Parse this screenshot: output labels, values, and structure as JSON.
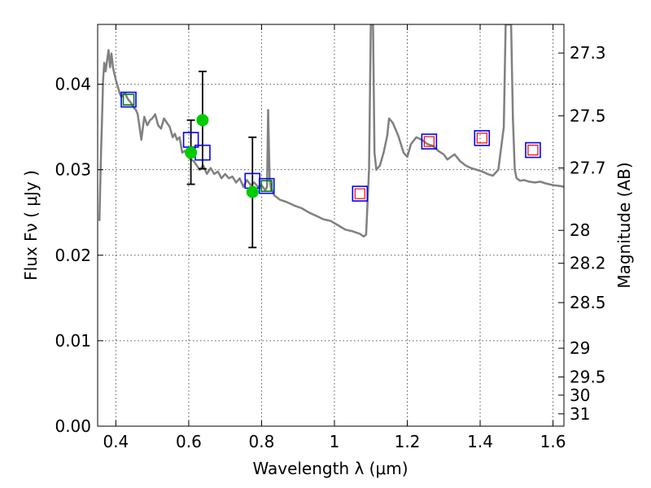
{
  "chart_data": {
    "type": "line",
    "xlabel": "Wavelength  λ (μm)",
    "ylabel_left": "Flux  Fν  ( μJy )",
    "ylabel_right": "Magnitude (AB)",
    "xlim": [
      0.35,
      1.63
    ],
    "ylim": [
      0.0,
      0.047
    ],
    "grid": true,
    "x_ticks": [
      0.4,
      0.6,
      0.8,
      1.0,
      1.2,
      1.4,
      1.6
    ],
    "x_tick_labels": [
      "0.4",
      "0.6",
      "0.8",
      "1",
      "1.2",
      "1.4",
      "1.6"
    ],
    "y_ticks": [
      0.0,
      0.01,
      0.02,
      0.03,
      0.04
    ],
    "y_tick_labels": [
      "0.00",
      "0.01",
      "0.02",
      "0.03",
      "0.04"
    ],
    "right_ticks": [
      27.3,
      27.5,
      27.7,
      28,
      28.2,
      28.5,
      29,
      29.5,
      30,
      31
    ],
    "right_tick_labels": [
      "27.3",
      "27.5",
      "27.7",
      "28",
      "28.2",
      "28.5",
      "29",
      "29.5",
      "30",
      "31"
    ],
    "colors": {
      "model": "#808080",
      "observed": "#00cc00",
      "blue_box": "#0000ff",
      "green_box": "#008000",
      "red_box": "#ff0000",
      "errorbar": "#000000",
      "grid": "#555555"
    },
    "model_spectrum": {
      "name": "",
      "x": [
        0.355,
        0.358,
        0.362,
        0.365,
        0.368,
        0.372,
        0.376,
        0.38,
        0.384,
        0.388,
        0.392,
        0.396,
        0.4,
        0.405,
        0.41,
        0.415,
        0.42,
        0.425,
        0.43,
        0.434,
        0.438,
        0.442,
        0.446,
        0.45,
        0.455,
        0.46,
        0.465,
        0.47,
        0.478,
        0.486,
        0.494,
        0.5,
        0.508,
        0.516,
        0.524,
        0.532,
        0.54,
        0.548,
        0.556,
        0.562,
        0.568,
        0.575,
        0.582,
        0.59,
        0.598,
        0.606,
        0.614,
        0.622,
        0.63,
        0.64,
        0.65,
        0.66,
        0.67,
        0.68,
        0.69,
        0.7,
        0.71,
        0.72,
        0.73,
        0.74,
        0.75,
        0.76,
        0.77,
        0.78,
        0.79,
        0.8,
        0.81,
        0.815,
        0.818,
        0.822,
        0.826,
        0.83,
        0.835,
        0.85,
        0.87,
        0.89,
        0.91,
        0.93,
        0.95,
        0.97,
        0.99,
        1.01,
        1.03,
        1.05,
        1.07,
        1.08,
        1.087,
        1.095,
        1.1,
        1.103,
        1.106,
        1.11,
        1.115,
        1.125,
        1.135,
        1.145,
        1.15,
        1.16,
        1.175,
        1.19,
        1.2,
        1.21,
        1.225,
        1.24,
        1.255,
        1.27,
        1.285,
        1.3,
        1.31,
        1.32,
        1.33,
        1.345,
        1.36,
        1.375,
        1.39,
        1.405,
        1.42,
        1.435,
        1.45,
        1.465,
        1.47,
        1.475,
        1.48,
        1.485,
        1.49,
        1.495,
        1.5,
        1.51,
        1.52,
        1.535,
        1.55,
        1.565,
        1.58,
        1.6,
        1.62,
        1.63
      ],
      "y": [
        0.024,
        0.03,
        0.036,
        0.0405,
        0.0425,
        0.0415,
        0.0428,
        0.044,
        0.042,
        0.0436,
        0.042,
        0.0412,
        0.0405,
        0.0398,
        0.039,
        0.0385,
        0.0388,
        0.039,
        0.0385,
        0.0382,
        0.038,
        0.0378,
        0.0375,
        0.0372,
        0.037,
        0.0365,
        0.035,
        0.0335,
        0.0362,
        0.0352,
        0.0358,
        0.036,
        0.0365,
        0.0352,
        0.0348,
        0.036,
        0.0355,
        0.035,
        0.0338,
        0.0342,
        0.0335,
        0.0338,
        0.032,
        0.0322,
        0.0315,
        0.0312,
        0.031,
        0.0305,
        0.03,
        0.0305,
        0.0295,
        0.0302,
        0.0295,
        0.0298,
        0.029,
        0.0295,
        0.029,
        0.0292,
        0.0285,
        0.029,
        0.028,
        0.0288,
        0.0282,
        0.0285,
        0.028,
        0.0282,
        0.0276,
        0.028,
        0.037,
        0.029,
        0.0277,
        0.0275,
        0.027,
        0.0265,
        0.0262,
        0.0258,
        0.0255,
        0.025,
        0.0246,
        0.0242,
        0.024,
        0.0235,
        0.023,
        0.0228,
        0.0225,
        0.0222,
        0.0224,
        0.03,
        0.047,
        0.047,
        0.047,
        0.032,
        0.03,
        0.0305,
        0.032,
        0.034,
        0.036,
        0.0355,
        0.034,
        0.032,
        0.0315,
        0.033,
        0.0338,
        0.0335,
        0.033,
        0.0328,
        0.0322,
        0.0318,
        0.0312,
        0.0315,
        0.0318,
        0.031,
        0.0305,
        0.0302,
        0.03,
        0.0298,
        0.0295,
        0.0293,
        0.03,
        0.035,
        0.047,
        0.047,
        0.047,
        0.047,
        0.036,
        0.03,
        0.029,
        0.0287,
        0.0288,
        0.0286,
        0.0285,
        0.0286,
        0.0284,
        0.0282,
        0.0281,
        0.028
      ]
    },
    "observed_points": {
      "name": "",
      "points": [
        {
          "x": 0.606,
          "y": 0.032,
          "yerr_low": 0.0037,
          "yerr_high": 0.0038
        },
        {
          "x": 0.638,
          "y": 0.0358,
          "yerr_low": 0.0057,
          "yerr_high": 0.0057
        },
        {
          "x": 0.775,
          "y": 0.0274,
          "yerr_low": 0.0065,
          "yerr_high": 0.0064
        }
      ]
    },
    "model_boxes_blue": {
      "name": "",
      "points": [
        {
          "x": 0.435,
          "y": 0.0382
        },
        {
          "x": 0.606,
          "y": 0.0335
        },
        {
          "x": 0.638,
          "y": 0.032
        },
        {
          "x": 0.775,
          "y": 0.0287
        },
        {
          "x": 0.814,
          "y": 0.0281
        },
        {
          "x": 1.07,
          "y": 0.0272
        },
        {
          "x": 1.26,
          "y": 0.0333
        },
        {
          "x": 1.405,
          "y": 0.0337
        },
        {
          "x": 1.545,
          "y": 0.0323
        }
      ]
    },
    "model_boxes_green": {
      "name": "",
      "points": [
        {
          "x": 0.435,
          "y": 0.0382
        },
        {
          "x": 0.814,
          "y": 0.0281
        }
      ]
    },
    "model_boxes_red": {
      "name": "",
      "points": [
        {
          "x": 1.07,
          "y": 0.0272
        },
        {
          "x": 1.26,
          "y": 0.0333
        },
        {
          "x": 1.405,
          "y": 0.0337
        },
        {
          "x": 1.545,
          "y": 0.0323
        }
      ]
    }
  }
}
